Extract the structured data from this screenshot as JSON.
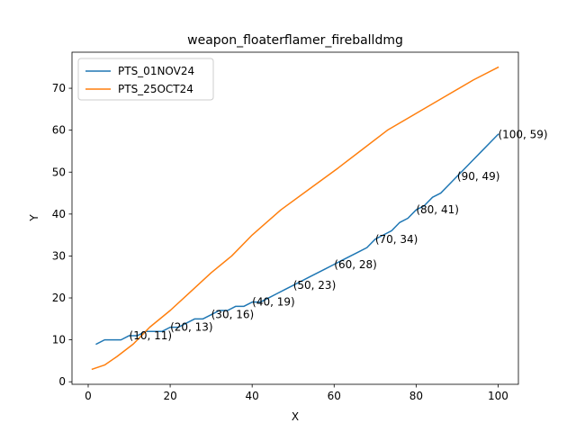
{
  "chart_data": {
    "type": "line",
    "title": "weapon_floaterflamer_fireballdmg",
    "xlabel": "X",
    "ylabel": "Y",
    "xlim": [
      -3.95,
      104.95
    ],
    "ylim": [
      -0.6,
      78.6
    ],
    "xticks": [
      0,
      20,
      40,
      60,
      80,
      100
    ],
    "yticks": [
      0,
      10,
      20,
      30,
      40,
      50,
      60,
      70
    ],
    "grid": false,
    "legend": "top-left",
    "series": [
      {
        "name": "PTS_01NOV24",
        "color": "#1f77b4",
        "x": [
          2,
          4,
          8,
          10,
          12,
          14,
          16,
          18,
          20,
          22,
          24,
          26,
          28,
          30,
          32,
          34,
          36,
          38,
          40,
          42,
          44,
          46,
          48,
          50,
          52,
          54,
          56,
          58,
          60,
          62,
          64,
          66,
          68,
          70,
          72,
          74,
          76,
          78,
          80,
          82,
          84,
          86,
          88,
          90,
          92,
          94,
          96,
          98,
          100
        ],
        "y": [
          9,
          10,
          10,
          11,
          11,
          12,
          12,
          12,
          13,
          13,
          14,
          15,
          15,
          16,
          17,
          17,
          18,
          18,
          19,
          19,
          20,
          21,
          22,
          23,
          24,
          25,
          26,
          27,
          28,
          29,
          30,
          31,
          32,
          34,
          35,
          36,
          38,
          39,
          41,
          42,
          44,
          45,
          47,
          49,
          51,
          53,
          55,
          57,
          59
        ]
      },
      {
        "name": "PTS_25OCT24",
        "color": "#ff7f0e",
        "x": [
          1,
          4,
          7,
          11,
          15,
          20,
          25,
          30,
          35,
          40,
          47,
          54,
          61,
          67,
          73,
          80,
          87,
          94,
          100
        ],
        "y": [
          3,
          4,
          6,
          9,
          13,
          17,
          21.5,
          26,
          30,
          35,
          41,
          46,
          51,
          55.5,
          60,
          64,
          68,
          72,
          75
        ]
      }
    ],
    "annotations": [
      {
        "x": 10,
        "y": 11,
        "text": "(10, 11)"
      },
      {
        "x": 20,
        "y": 13,
        "text": "(20, 13)"
      },
      {
        "x": 30,
        "y": 16,
        "text": "(30, 16)"
      },
      {
        "x": 40,
        "y": 19,
        "text": "(40, 19)"
      },
      {
        "x": 50,
        "y": 23,
        "text": "(50, 23)"
      },
      {
        "x": 60,
        "y": 28,
        "text": "(60, 28)"
      },
      {
        "x": 70,
        "y": 34,
        "text": "(70, 34)"
      },
      {
        "x": 80,
        "y": 41,
        "text": "(80, 41)"
      },
      {
        "x": 90,
        "y": 49,
        "text": "(90, 49)"
      },
      {
        "x": 100,
        "y": 59,
        "text": "(100, 59)"
      }
    ]
  }
}
